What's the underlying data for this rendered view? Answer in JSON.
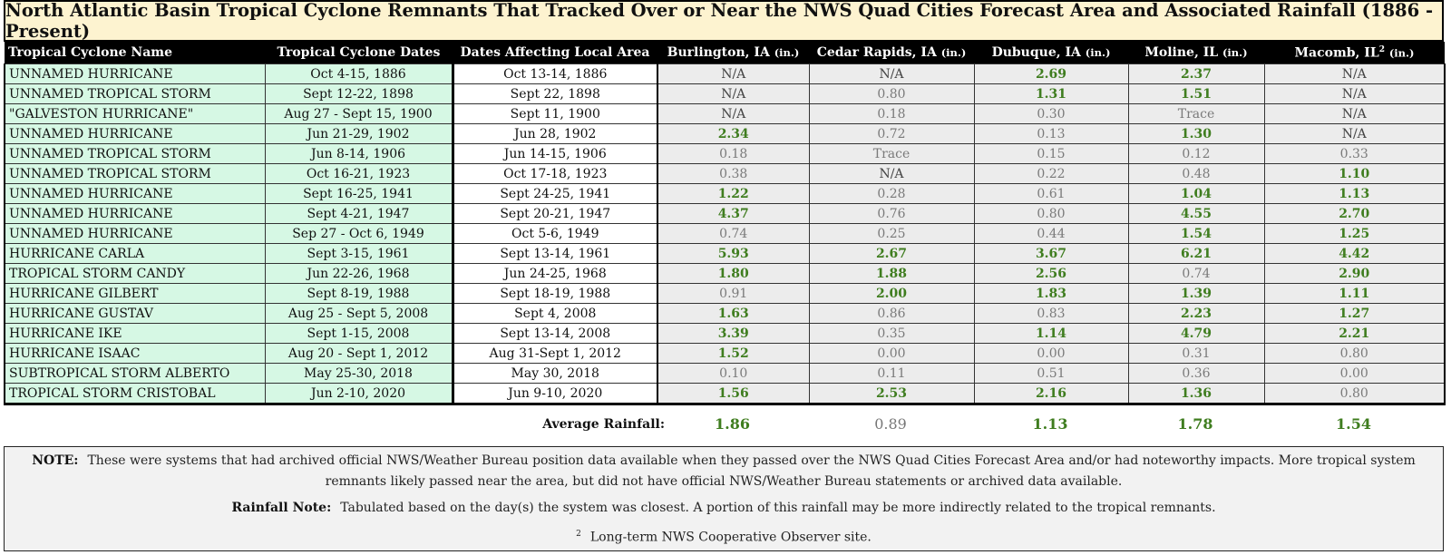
{
  "title": "North Atlantic Basin Tropical Cyclone Remnants That Tracked Over or Near the NWS Quad Cities Forecast Area and Associated Rainfall (1886 - Present)",
  "columns": {
    "name": "Tropical Cyclone Name",
    "tc_dates": "Tropical Cyclone Dates",
    "local_dates": "Dates Affecting Local Area",
    "burlington": "Burlington, IA",
    "cedar_rapids": "Cedar Rapids, IA",
    "dubuque": "Dubuque, IA",
    "moline": "Moline, IL",
    "macomb": "Macomb, IL",
    "unit": "(in.)",
    "macomb_sup": "2"
  },
  "rows": [
    {
      "name": "UNNAMED HURRICANE",
      "tc": "Oct 4-15, 1886",
      "local": "Oct 13-14, 1886",
      "v": [
        "N/A",
        "N/A",
        "2.69",
        "2.37",
        "N/A"
      ]
    },
    {
      "name": "UNNAMED TROPICAL STORM",
      "tc": "Sept 12-22, 1898",
      "local": "Sept 22, 1898",
      "v": [
        "N/A",
        "0.80",
        "1.31",
        "1.51",
        "N/A"
      ]
    },
    {
      "name": "\"GALVESTON HURRICANE\"",
      "tc": "Aug 27 - Sept 15, 1900",
      "local": "Sept 11, 1900",
      "v": [
        "N/A",
        "0.18",
        "0.30",
        "Trace",
        "N/A"
      ]
    },
    {
      "name": "UNNAMED HURRICANE",
      "tc": "Jun 21-29, 1902",
      "local": "Jun 28, 1902",
      "v": [
        "2.34",
        "0.72",
        "0.13",
        "1.30",
        "N/A"
      ]
    },
    {
      "name": "UNNAMED TROPICAL STORM",
      "tc": "Jun 8-14, 1906",
      "local": "Jun 14-15, 1906",
      "v": [
        "0.18",
        "Trace",
        "0.15",
        "0.12",
        "0.33"
      ]
    },
    {
      "name": "UNNAMED TROPICAL STORM",
      "tc": "Oct 16-21, 1923",
      "local": "Oct 17-18, 1923",
      "v": [
        "0.38",
        "N/A",
        "0.22",
        "0.48",
        "1.10"
      ]
    },
    {
      "name": "UNNAMED HURRICANE",
      "tc": "Sept 16-25, 1941",
      "local": "Sept 24-25, 1941",
      "v": [
        "1.22",
        "0.28",
        "0.61",
        "1.04",
        "1.13"
      ]
    },
    {
      "name": "UNNAMED HURRICANE",
      "tc": "Sept 4-21, 1947",
      "local": "Sept 20-21, 1947",
      "v": [
        "4.37",
        "0.76",
        "0.80",
        "4.55",
        "2.70"
      ]
    },
    {
      "name": "UNNAMED HURRICANE",
      "tc": "Sep 27 - Oct 6, 1949",
      "local": "Oct 5-6, 1949",
      "v": [
        "0.74",
        "0.25",
        "0.44",
        "1.54",
        "1.25"
      ]
    },
    {
      "name": "HURRICANE CARLA",
      "tc": "Sept 3-15, 1961",
      "local": "Sept 13-14, 1961",
      "v": [
        "5.93",
        "2.67",
        "3.67",
        "6.21",
        "4.42"
      ]
    },
    {
      "name": "TROPICAL STORM CANDY",
      "tc": "Jun 22-26, 1968",
      "local": "Jun 24-25, 1968",
      "v": [
        "1.80",
        "1.88",
        "2.56",
        "0.74",
        "2.90"
      ]
    },
    {
      "name": "HURRICANE GILBERT",
      "tc": "Sept 8-19, 1988",
      "local": "Sept 18-19, 1988",
      "v": [
        "0.91",
        "2.00",
        "1.83",
        "1.39",
        "1.11"
      ]
    },
    {
      "name": "HURRICANE GUSTAV",
      "tc": "Aug 25 - Sept 5, 2008",
      "local": "Sept 4, 2008",
      "v": [
        "1.63",
        "0.86",
        "0.83",
        "2.23",
        "1.27"
      ]
    },
    {
      "name": "HURRICANE IKE",
      "tc": "Sept 1-15, 2008",
      "local": "Sept 13-14, 2008",
      "v": [
        "3.39",
        "0.35",
        "1.14",
        "4.79",
        "2.21"
      ]
    },
    {
      "name": "HURRICANE ISAAC",
      "tc": "Aug 20 - Sept 1, 2012",
      "local": "Aug 31-Sept 1, 2012",
      "v": [
        "1.52",
        "0.00",
        "0.00",
        "0.31",
        "0.80"
      ]
    },
    {
      "name": "SUBTROPICAL STORM ALBERTO",
      "tc": "May 25-30, 2018",
      "local": "May 30, 2018",
      "v": [
        "0.10",
        "0.11",
        "0.51",
        "0.36",
        "0.00"
      ]
    },
    {
      "name": "TROPICAL STORM CRISTOBAL",
      "tc": "Jun 2-10, 2020",
      "local": "Jun 9-10, 2020",
      "v": [
        "1.56",
        "2.53",
        "2.16",
        "1.36",
        "0.80"
      ]
    }
  ],
  "average": {
    "label": "Average Rainfall:",
    "values": [
      "1.86",
      "0.89",
      "1.13",
      "1.78",
      "1.54"
    ]
  },
  "notes": {
    "note_label": "NOTE:",
    "note_text": "These were systems that had archived official NWS/Weather Bureau position data available when they passed over the NWS Quad Cities Forecast Area and/or had noteworthy impacts.  More tropical system remnants likely passed near the area, but did not have official NWS/Weather Bureau statements or archived data available.",
    "rain_label": "Rainfall Note:",
    "rain_text": "Tabulated based on the day(s) the system was closest.  A portion of this rainfall may be more indirectly related to the tropical remnants.",
    "footnote_mark": "2",
    "footnote_text": "Long-term NWS Cooperative Observer site."
  },
  "colors": {
    "title_bg": "#fdf3d0",
    "name_bg": "#d6f8e4",
    "value_bg": "#ececec",
    "highlight_text": "#3f7d1f",
    "header_bg": "#000000"
  }
}
